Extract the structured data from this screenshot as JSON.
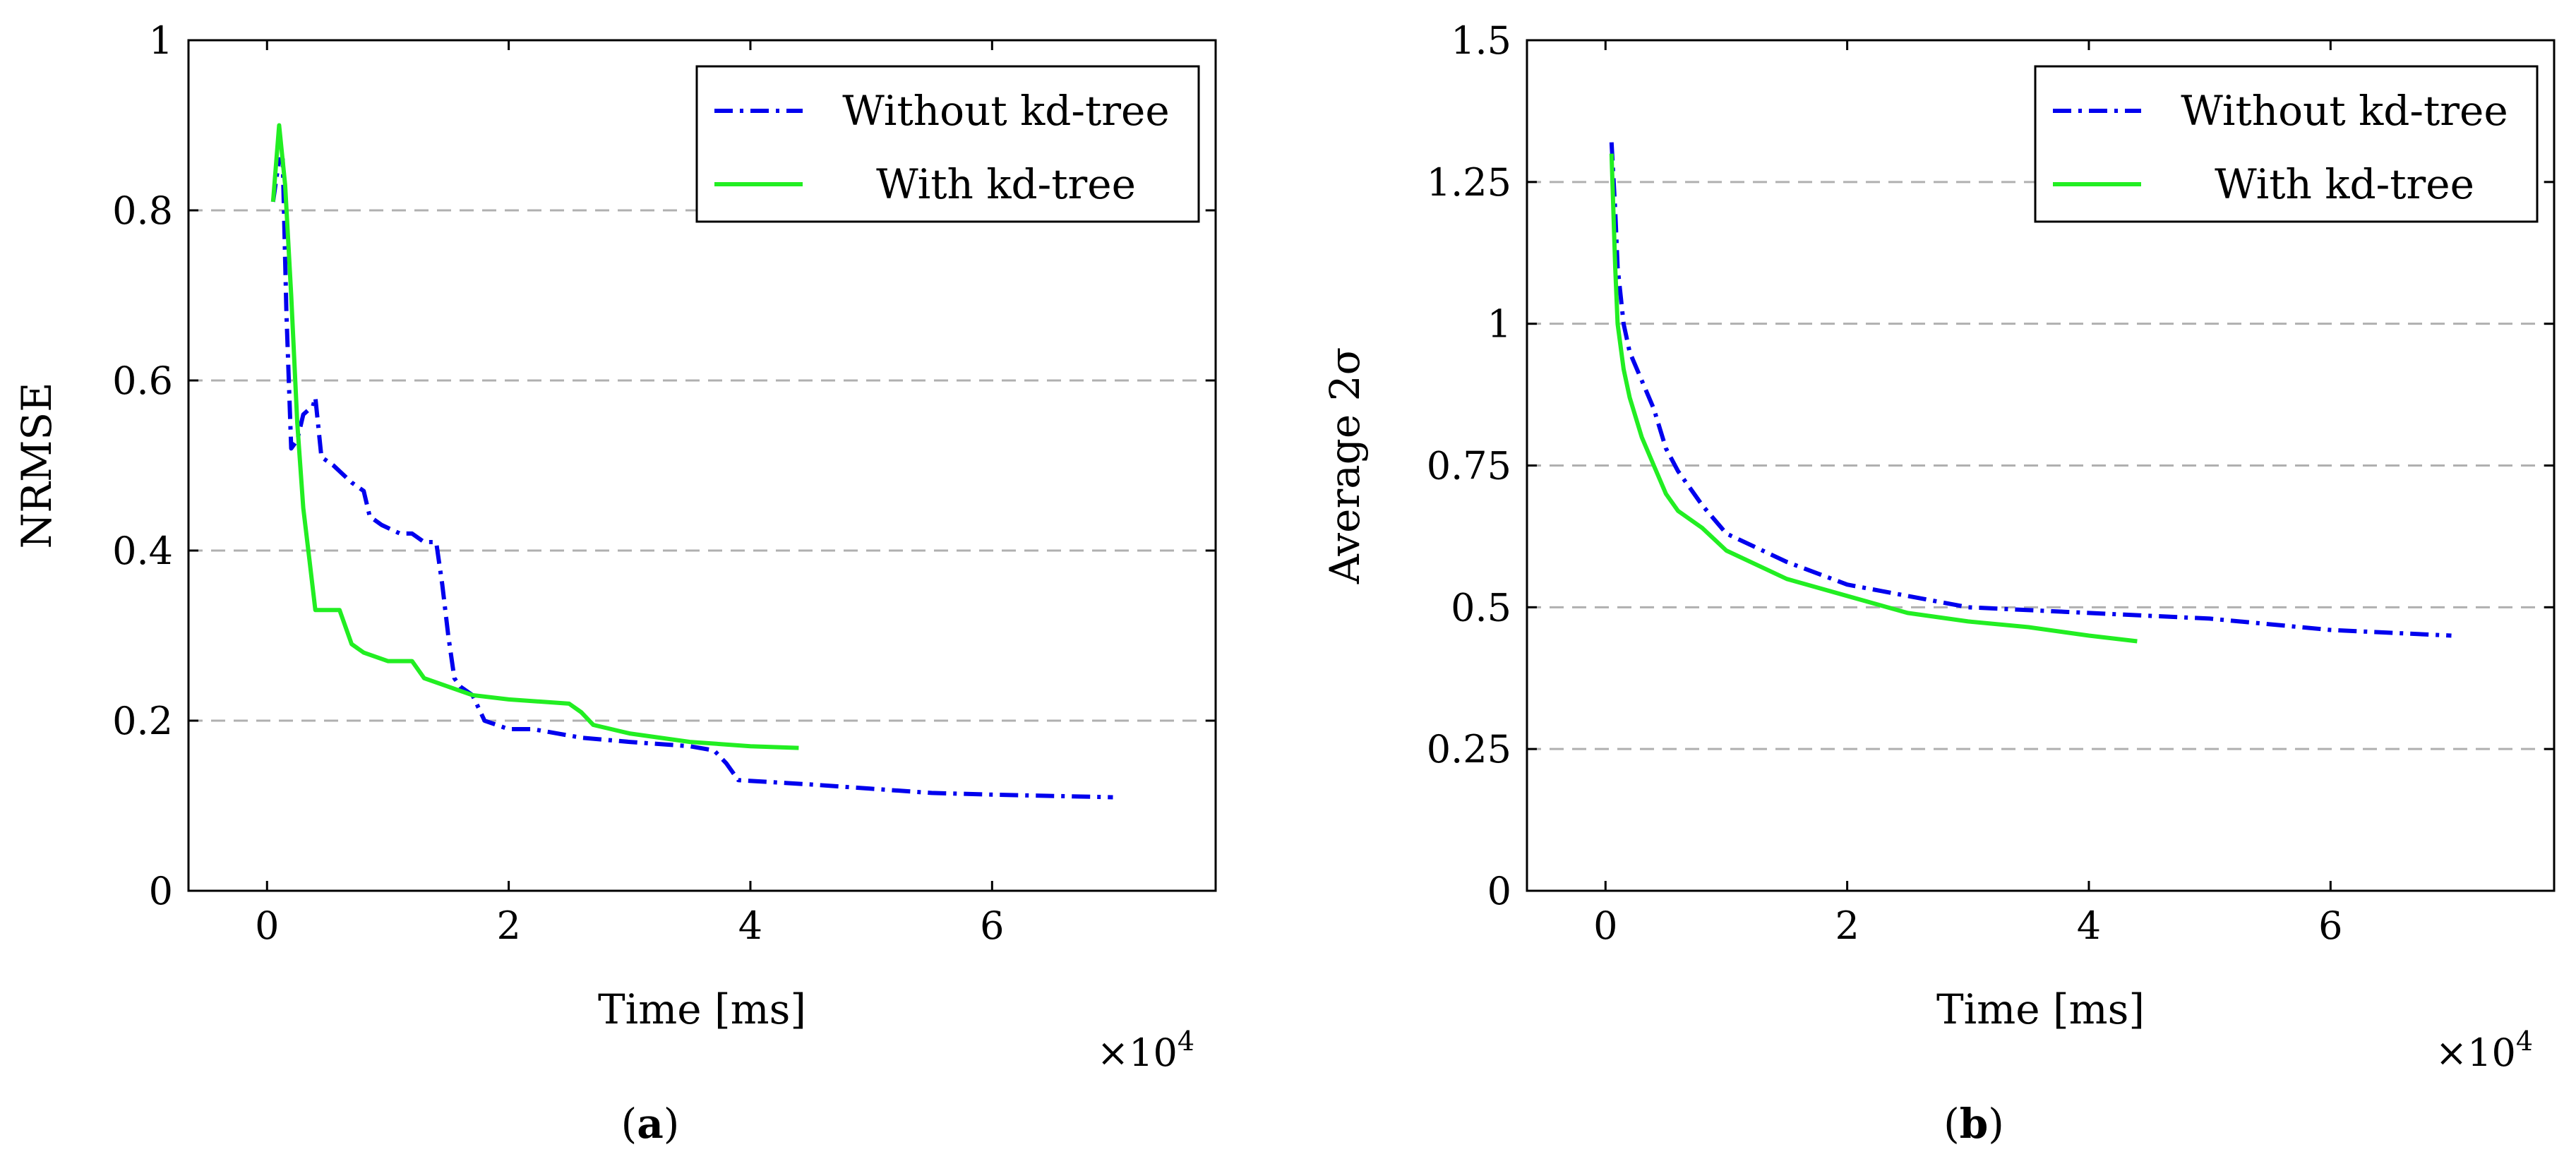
{
  "chart_data": [
    {
      "type": "line",
      "panel_label": "a",
      "title": "",
      "xlabel": "Time [ms]",
      "ylabel": "NRMSE",
      "x_multiplier": "×10",
      "x_multiplier_exp": "4",
      "xlim": [
        -0.65,
        7.85
      ],
      "ylim": [
        0,
        1
      ],
      "xticks": [
        0,
        2,
        4,
        6
      ],
      "xtick_labels": [
        "0",
        "2",
        "4",
        "6"
      ],
      "yticks": [
        0,
        0.2,
        0.4,
        0.6,
        0.8,
        1
      ],
      "ytick_labels": [
        "0",
        "0.2",
        "0.4",
        "0.6",
        "0.8",
        "1"
      ],
      "grid": "horizontal dashed",
      "legend_position": "top-right",
      "series": [
        {
          "name": "Without kd-tree",
          "style": "dashdot",
          "color": "#0000ee",
          "x": [
            0.05,
            0.1,
            0.13,
            0.16,
            0.2,
            0.25,
            0.3,
            0.38,
            0.4,
            0.45,
            0.55,
            0.7,
            0.8,
            0.85,
            0.95,
            1.1,
            1.2,
            1.3,
            1.4,
            1.45,
            1.5,
            1.55,
            1.6,
            1.7,
            1.8,
            2.0,
            2.2,
            2.4,
            2.6,
            3.0,
            3.5,
            3.7,
            3.8,
            3.9,
            4.5,
            5.0,
            5.5,
            6.0,
            7.0
          ],
          "y": [
            0.81,
            0.86,
            0.86,
            0.68,
            0.52,
            0.53,
            0.56,
            0.57,
            0.58,
            0.51,
            0.5,
            0.48,
            0.47,
            0.44,
            0.43,
            0.42,
            0.42,
            0.41,
            0.41,
            0.36,
            0.3,
            0.25,
            0.24,
            0.23,
            0.2,
            0.19,
            0.19,
            0.185,
            0.18,
            0.175,
            0.17,
            0.165,
            0.15,
            0.13,
            0.125,
            0.12,
            0.115,
            0.113,
            0.11
          ]
        },
        {
          "name": "With kd-tree",
          "style": "solid",
          "color": "#22ee22",
          "x": [
            0.05,
            0.1,
            0.15,
            0.2,
            0.25,
            0.3,
            0.35,
            0.4,
            0.5,
            0.6,
            0.7,
            0.8,
            1.0,
            1.2,
            1.3,
            1.5,
            1.7,
            2.0,
            2.5,
            2.6,
            2.7,
            3.0,
            3.5,
            4.0,
            4.4
          ],
          "y": [
            0.81,
            0.9,
            0.83,
            0.7,
            0.55,
            0.45,
            0.39,
            0.33,
            0.33,
            0.33,
            0.29,
            0.28,
            0.27,
            0.27,
            0.25,
            0.24,
            0.23,
            0.225,
            0.22,
            0.21,
            0.195,
            0.185,
            0.175,
            0.17,
            0.168
          ]
        }
      ]
    },
    {
      "type": "line",
      "panel_label": "b",
      "title": "",
      "xlabel": "Time [ms]",
      "ylabel": "Average 2σ",
      "x_multiplier": "×10",
      "x_multiplier_exp": "4",
      "xlim": [
        -0.65,
        7.85
      ],
      "ylim": [
        0,
        1.5
      ],
      "xticks": [
        0,
        2,
        4,
        6
      ],
      "xtick_labels": [
        "0",
        "2",
        "4",
        "6"
      ],
      "yticks": [
        0,
        0.25,
        0.5,
        0.75,
        1,
        1.25,
        1.5
      ],
      "ytick_labels": [
        "0",
        "0.25",
        "0.5",
        "0.75",
        "1",
        "1.25",
        "1.5"
      ],
      "grid": "horizontal dashed",
      "legend_position": "top-right",
      "series": [
        {
          "name": "Without kd-tree",
          "style": "dashdot",
          "color": "#0000ee",
          "x": [
            0.05,
            0.08,
            0.1,
            0.15,
            0.2,
            0.3,
            0.4,
            0.5,
            0.6,
            0.8,
            1.0,
            1.5,
            2.0,
            2.5,
            3.0,
            4.0,
            5.0,
            6.0,
            7.0
          ],
          "y": [
            1.32,
            1.2,
            1.1,
            1.0,
            0.95,
            0.9,
            0.85,
            0.78,
            0.74,
            0.68,
            0.63,
            0.58,
            0.54,
            0.52,
            0.5,
            0.49,
            0.48,
            0.46,
            0.45
          ]
        },
        {
          "name": "With kd-tree",
          "style": "solid",
          "color": "#22ee22",
          "x": [
            0.05,
            0.08,
            0.1,
            0.15,
            0.2,
            0.3,
            0.4,
            0.5,
            0.6,
            0.8,
            1.0,
            1.5,
            2.0,
            2.5,
            3.0,
            3.5,
            4.0,
            4.4
          ],
          "y": [
            1.3,
            1.1,
            1.0,
            0.92,
            0.87,
            0.8,
            0.75,
            0.7,
            0.67,
            0.64,
            0.6,
            0.55,
            0.52,
            0.49,
            0.475,
            0.465,
            0.45,
            0.44
          ]
        }
      ]
    }
  ]
}
